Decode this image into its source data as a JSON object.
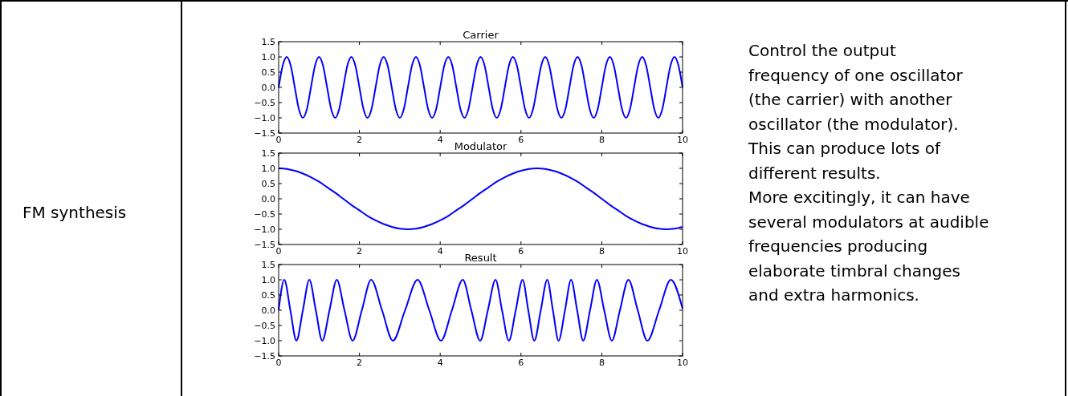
{
  "chart_data": [
    {
      "type": "other",
      "title": "FM synthesis",
      "annotations": [
        "Control the output",
        "frequency of one oscillator",
        "(the carrier) with another",
        "oscillator (the modulator).",
        "This can produce lots of",
        "different results.",
        "More excitingly, it can have",
        "several modulators at audible",
        "frequencies producing",
        "elaborate timbral changes",
        "and extra harmonics."
      ]
    },
    {
      "type": "line",
      "title": "Carrier",
      "xlim": [
        0,
        10
      ],
      "xticks": [
        0,
        2,
        4,
        6,
        8,
        10
      ],
      "ylim": [
        -1.5,
        1.5
      ],
      "yticks": [
        {
          "value": -1.5,
          "label": "−1.5"
        },
        {
          "value": -1,
          "label": "−1.0"
        },
        {
          "value": -0.5,
          "label": "−0.5"
        },
        {
          "value": 0,
          "label": "0.0"
        },
        {
          "value": 0.5,
          "label": "0.5"
        },
        {
          "value": 1,
          "label": "1.0"
        },
        {
          "value": 1.5,
          "label": "1.5"
        }
      ],
      "series": [
        {
          "color": "#0000ff",
          "x": [
            0,
            0.1,
            0.2,
            0.3,
            0.4,
            0.5,
            0.6,
            0.7,
            0.8,
            0.9,
            1,
            1.1,
            1.2,
            1.3,
            1.4,
            1.5,
            1.6,
            1.7,
            1.8,
            1.9,
            2,
            2.1,
            2.2,
            2.3,
            2.4,
            2.5,
            2.6,
            2.7,
            2.8,
            2.9,
            3,
            3.1,
            3.2,
            3.3,
            3.4,
            3.5,
            3.6,
            3.7,
            3.8,
            3.9,
            4,
            4.1,
            4.2,
            4.3,
            4.4,
            4.5,
            4.6,
            4.7,
            4.8,
            4.9,
            5,
            5.1,
            5.2,
            5.3,
            5.4,
            5.5,
            5.6,
            5.7,
            5.8,
            5.9,
            6,
            6.1,
            6.2,
            6.3,
            6.4,
            6.5,
            6.6,
            6.7,
            6.8,
            6.9,
            7,
            7.1,
            7.2,
            7.3,
            7.4,
            7.5,
            7.6,
            7.7,
            7.8,
            7.9,
            8,
            8.1,
            8.2,
            8.3,
            8.4,
            8.5,
            8.6,
            8.7,
            8.8,
            8.9,
            9,
            9.1,
            9.2,
            9.3,
            9.4,
            9.5,
            9.6,
            9.7,
            9.8,
            9.9,
            10
          ],
          "values": [
            0,
            0.71,
            1,
            0.71,
            0,
            -0.71,
            -1,
            -0.71,
            0,
            0.71,
            1,
            0.71,
            0,
            -0.71,
            -1,
            -0.71,
            0,
            0.71,
            1,
            0.71,
            0,
            -0.71,
            -1,
            -0.71,
            0,
            0.71,
            1,
            0.71,
            0,
            -0.71,
            -1,
            -0.71,
            0,
            0.71,
            1,
            0.71,
            0,
            -0.71,
            -1,
            -0.71,
            0,
            0.71,
            1,
            0.71,
            0,
            -0.71,
            -1,
            -0.71,
            0,
            0.71,
            1,
            0.71,
            0,
            -0.71,
            -1,
            -0.71,
            0,
            0.71,
            1,
            0.71,
            0,
            -0.71,
            -1,
            -0.71,
            0,
            0.71,
            1,
            0.71,
            0,
            -0.71,
            -1,
            -0.71,
            0,
            0.71,
            1,
            0.71,
            0,
            -0.71,
            -1,
            -0.71,
            0,
            0.71,
            1,
            0.71,
            0,
            -0.71,
            -1,
            -0.71,
            0,
            0.71,
            1,
            0.71,
            0,
            -0.71,
            -1,
            -0.71,
            0,
            0.71,
            1,
            0.71,
            0
          ]
        }
      ]
    },
    {
      "type": "line",
      "title": "Modulator",
      "xlim": [
        0,
        10
      ],
      "xticks": [
        0,
        2,
        4,
        6,
        8,
        10
      ],
      "ylim": [
        -1.5,
        1.5
      ],
      "yticks": [
        {
          "value": -1.5,
          "label": "−1.5"
        },
        {
          "value": -1,
          "label": "−1.0"
        },
        {
          "value": -0.5,
          "label": "−0.5"
        },
        {
          "value": 0,
          "label": "0.0"
        },
        {
          "value": 0.5,
          "label": "0.5"
        },
        {
          "value": 1,
          "label": "1.0"
        },
        {
          "value": 1.5,
          "label": "1.5"
        }
      ],
      "series": [
        {
          "color": "#0000ff",
          "x": [
            0,
            0.2,
            0.4,
            0.6,
            0.8,
            1,
            1.2,
            1.4,
            1.6,
            1.8,
            2,
            2.2,
            2.4,
            2.6,
            2.8,
            3,
            3.2,
            3.4,
            3.6,
            3.8,
            4,
            4.2,
            4.4,
            4.6,
            4.8,
            5,
            5.2,
            5.4,
            5.6,
            5.8,
            6,
            6.2,
            6.4,
            6.6,
            6.8,
            7,
            7.2,
            7.4,
            7.6,
            7.8,
            8,
            8.2,
            8.4,
            8.6,
            8.8,
            9,
            9.2,
            9.4,
            9.6,
            9.8,
            10
          ],
          "values": [
            1,
            0.98,
            0.92,
            0.83,
            0.71,
            0.56,
            0.38,
            0.2,
            0,
            -0.2,
            -0.38,
            -0.56,
            -0.71,
            -0.83,
            -0.92,
            -0.98,
            -1,
            -0.98,
            -0.92,
            -0.83,
            -0.71,
            -0.56,
            -0.38,
            -0.2,
            0,
            0.2,
            0.38,
            0.56,
            0.71,
            0.83,
            0.92,
            0.98,
            1,
            0.98,
            0.92,
            0.83,
            0.71,
            0.56,
            0.38,
            0.2,
            0,
            -0.2,
            -0.38,
            -0.56,
            -0.71,
            -0.83,
            -0.92,
            -0.98,
            -1,
            -0.98,
            -0.92
          ]
        }
      ]
    },
    {
      "type": "line",
      "title": "Result",
      "xlim": [
        0,
        10
      ],
      "xticks": [
        0,
        2,
        4,
        6,
        8,
        10
      ],
      "ylim": [
        -1.5,
        1.5
      ],
      "yticks": [
        {
          "value": -1.5,
          "label": "−1.5"
        },
        {
          "value": -1,
          "label": "−1.0"
        },
        {
          "value": -0.5,
          "label": "−0.5"
        },
        {
          "value": 0,
          "label": "0.0"
        },
        {
          "value": 0.5,
          "label": "0.5"
        },
        {
          "value": 1,
          "label": "1.0"
        },
        {
          "value": 1.5,
          "label": "1.5"
        }
      ],
      "series": [
        {
          "color": "#0000ff",
          "x": [
            0,
            0.14,
            0.29,
            0.44,
            0.6,
            0.76,
            0.92,
            1.08,
            1.26,
            1.44,
            1.63,
            1.83,
            2.06,
            2.29,
            2.56,
            2.83,
            3.13,
            3.44,
            3.73,
            4.02,
            4.29,
            4.56,
            4.77,
            4.99,
            5.18,
            5.37,
            5.53,
            5.7,
            5.87,
            6.04,
            6.18,
            6.33,
            6.49,
            6.65,
            6.79,
            6.93,
            7.09,
            7.24,
            7.39,
            7.54,
            7.71,
            7.88,
            8.06,
            8.25,
            8.45,
            8.66,
            8.89,
            9.13,
            9.42,
            9.71,
            10
          ],
          "values": [
            0,
            1,
            0,
            -1,
            0,
            1,
            0,
            -1,
            0,
            1,
            0,
            -1,
            0,
            1,
            0,
            -1,
            0,
            1,
            0,
            -1,
            0,
            1,
            0,
            -1,
            0,
            1,
            0,
            -1,
            0,
            1,
            0,
            -1,
            0,
            1,
            0,
            -1,
            0,
            1,
            0,
            -1,
            0,
            1,
            0,
            -1,
            0,
            1,
            0,
            -1,
            0,
            1,
            0.05
          ]
        }
      ]
    }
  ]
}
